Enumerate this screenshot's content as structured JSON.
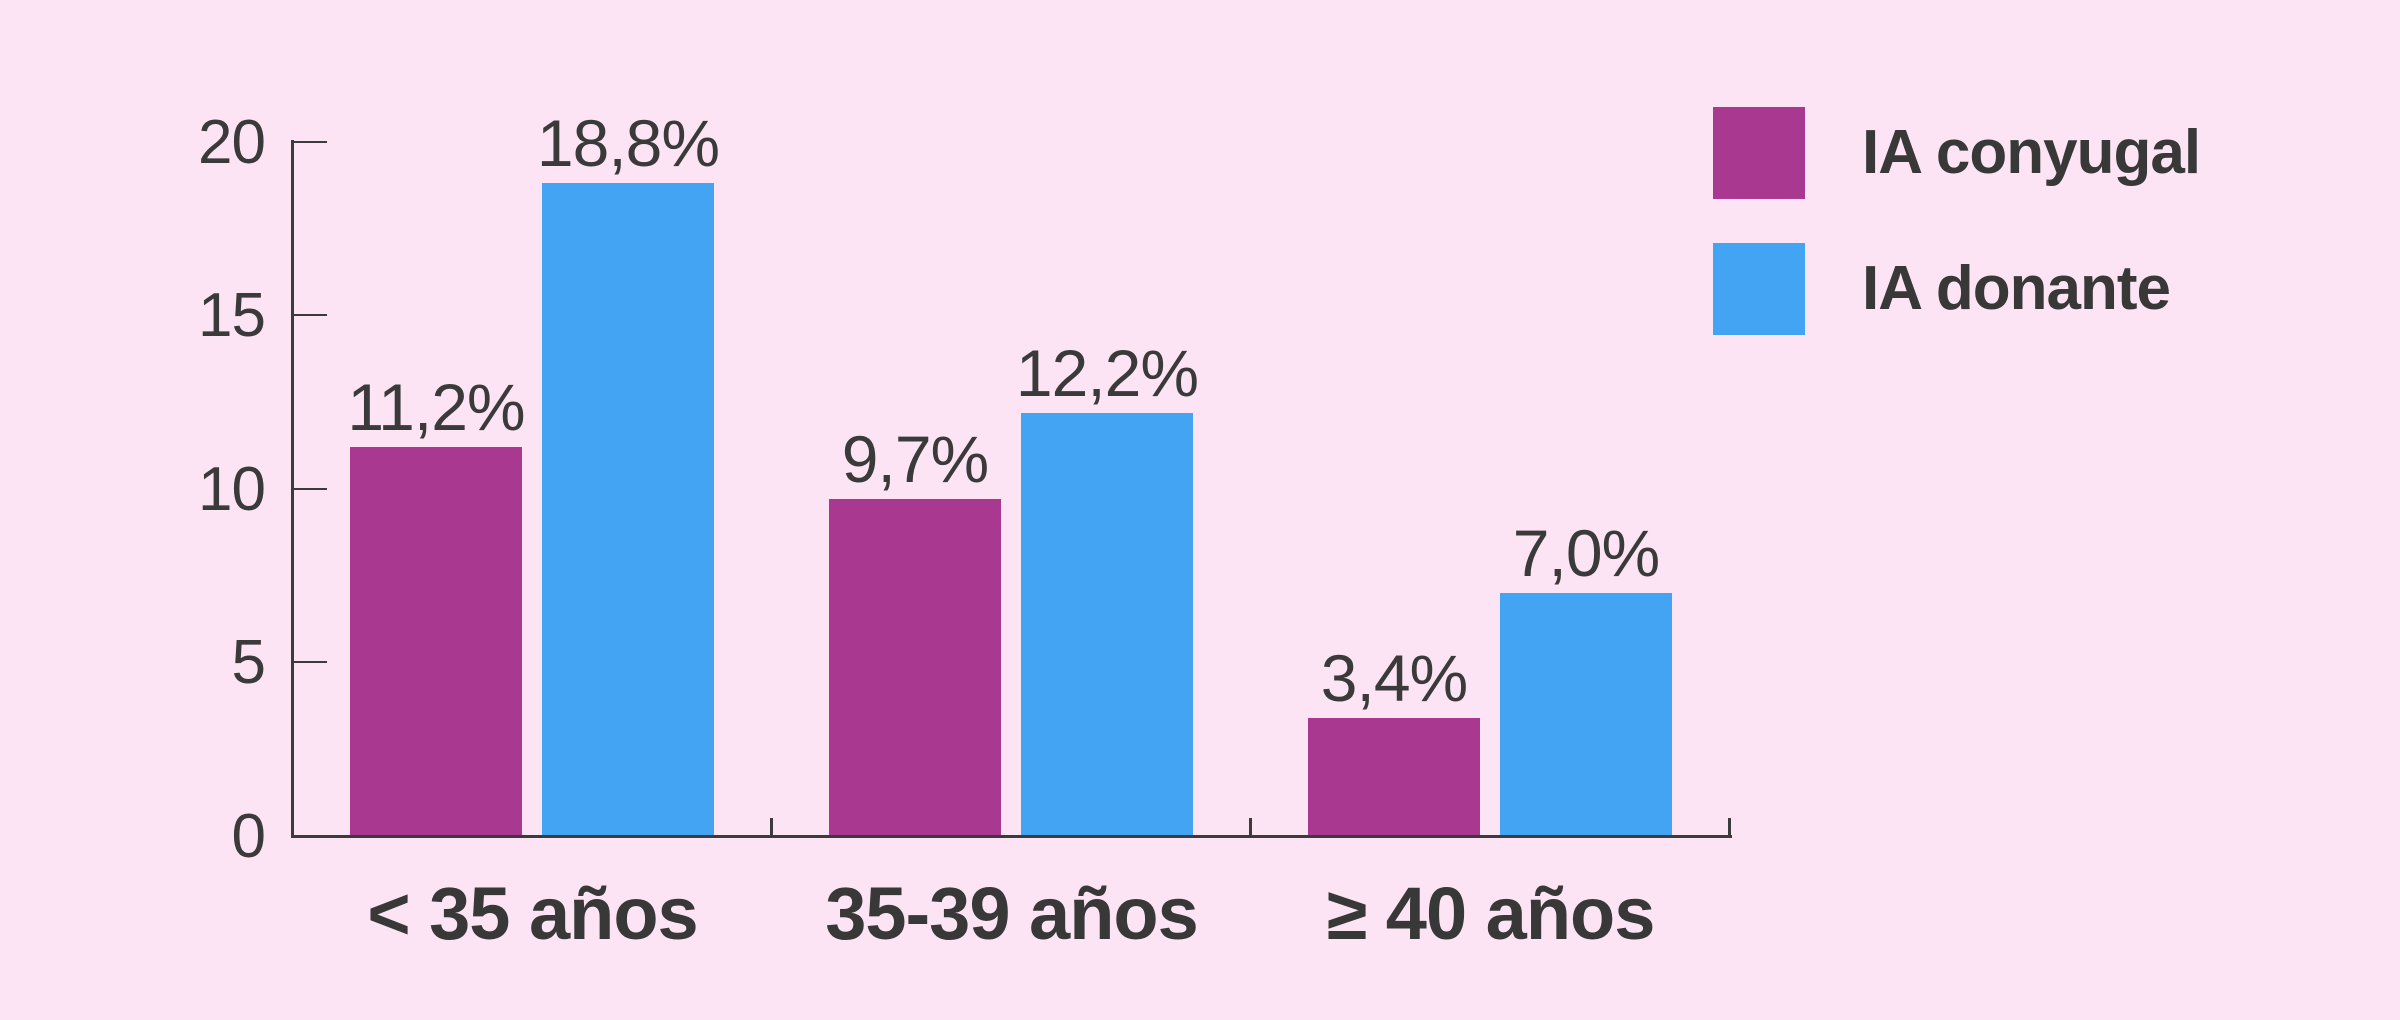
{
  "colors": {
    "background": "#fce4f5",
    "axis": "#3b3b3b",
    "text": "#3a3a3a",
    "series_conyugal": "#a93890",
    "series_donante": "#42a4f3"
  },
  "chart_data": {
    "type": "bar",
    "title": "",
    "categories": [
      "< 35 años",
      "35-39 años",
      "≥ 40 años"
    ],
    "series": [
      {
        "name": "IA conyugal",
        "color": "#a93890",
        "values": [
          11.2,
          9.7,
          3.4
        ],
        "labels": [
          "11,2%",
          "9,7%",
          "3,4%"
        ]
      },
      {
        "name": "IA donante",
        "color": "#42a4f3",
        "values": [
          18.8,
          12.2,
          7.0
        ],
        "labels": [
          "18,8%",
          "12,2%",
          "7,0%"
        ]
      }
    ],
    "y_axis": {
      "min": 0,
      "max": 20,
      "tick_interval": 5,
      "tick_values": [
        0,
        5,
        10,
        15,
        20
      ],
      "tick_labels": [
        "0",
        "5",
        "10",
        "15",
        "20"
      ]
    },
    "legend_position": "top-right",
    "grid": false,
    "value_label_format": "comma-decimal-percent"
  },
  "legend": {
    "items": [
      {
        "label": "IA conyugal",
        "color": "#a93890"
      },
      {
        "label": "IA donante",
        "color": "#42a4f3"
      }
    ]
  }
}
